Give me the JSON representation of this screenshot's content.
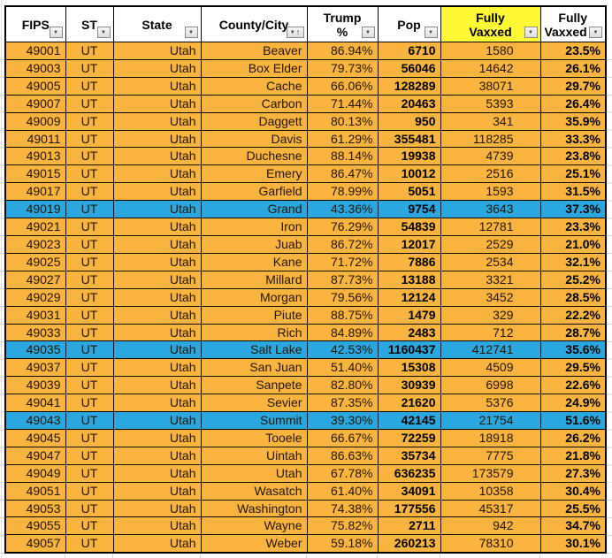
{
  "colors": {
    "row_orange": "#F8B43E",
    "row_highlight_blue": "#2BA7DF",
    "header_highlight_yellow": "#FFF835",
    "cell_border": "#000000"
  },
  "icons": {
    "dropdown": "▼",
    "sort_asc": "↑"
  },
  "table": {
    "columns": [
      {
        "id": "fips",
        "label_lines": [
          "FIPS"
        ],
        "filter": "dropdown"
      },
      {
        "id": "st",
        "label_lines": [
          "ST"
        ],
        "filter": "dropdown"
      },
      {
        "id": "state",
        "label_lines": [
          "State"
        ],
        "filter": "dropdown"
      },
      {
        "id": "county",
        "label_lines": [
          "County/City"
        ],
        "filter": "dropdown-sorted-ascending"
      },
      {
        "id": "trump_pct",
        "label_lines": [
          "Trump",
          "%"
        ],
        "filter": "dropdown"
      },
      {
        "id": "pop",
        "label_lines": [
          "Pop"
        ],
        "filter": "dropdown"
      },
      {
        "id": "fully_vaxxed",
        "label_lines": [
          "Fully",
          "Vaxxed"
        ],
        "filter": "dropdown",
        "highlight": "yellow"
      },
      {
        "id": "fully_vaxxed_pct",
        "label_lines": [
          "Fully",
          "Vaxxed %"
        ],
        "filter": "dropdown"
      }
    ],
    "rows": [
      {
        "fips": "49001",
        "st": "UT",
        "state": "Utah",
        "county": "Beaver",
        "trump_pct": "86.94%",
        "pop": "6710",
        "fully_vaxxed": "1580",
        "fully_vaxxed_pct": "23.5%",
        "highlight": false
      },
      {
        "fips": "49003",
        "st": "UT",
        "state": "Utah",
        "county": "Box Elder",
        "trump_pct": "79.73%",
        "pop": "56046",
        "fully_vaxxed": "14642",
        "fully_vaxxed_pct": "26.1%",
        "highlight": false
      },
      {
        "fips": "49005",
        "st": "UT",
        "state": "Utah",
        "county": "Cache",
        "trump_pct": "66.06%",
        "pop": "128289",
        "fully_vaxxed": "38071",
        "fully_vaxxed_pct": "29.7%",
        "highlight": false
      },
      {
        "fips": "49007",
        "st": "UT",
        "state": "Utah",
        "county": "Carbon",
        "trump_pct": "71.44%",
        "pop": "20463",
        "fully_vaxxed": "5393",
        "fully_vaxxed_pct": "26.4%",
        "highlight": false
      },
      {
        "fips": "49009",
        "st": "UT",
        "state": "Utah",
        "county": "Daggett",
        "trump_pct": "80.13%",
        "pop": "950",
        "fully_vaxxed": "341",
        "fully_vaxxed_pct": "35.9%",
        "highlight": false
      },
      {
        "fips": "49011",
        "st": "UT",
        "state": "Utah",
        "county": "Davis",
        "trump_pct": "61.29%",
        "pop": "355481",
        "fully_vaxxed": "118285",
        "fully_vaxxed_pct": "33.3%",
        "highlight": false
      },
      {
        "fips": "49013",
        "st": "UT",
        "state": "Utah",
        "county": "Duchesne",
        "trump_pct": "88.14%",
        "pop": "19938",
        "fully_vaxxed": "4739",
        "fully_vaxxed_pct": "23.8%",
        "highlight": false
      },
      {
        "fips": "49015",
        "st": "UT",
        "state": "Utah",
        "county": "Emery",
        "trump_pct": "86.47%",
        "pop": "10012",
        "fully_vaxxed": "2516",
        "fully_vaxxed_pct": "25.1%",
        "highlight": false
      },
      {
        "fips": "49017",
        "st": "UT",
        "state": "Utah",
        "county": "Garfield",
        "trump_pct": "78.99%",
        "pop": "5051",
        "fully_vaxxed": "1593",
        "fully_vaxxed_pct": "31.5%",
        "highlight": false
      },
      {
        "fips": "49019",
        "st": "UT",
        "state": "Utah",
        "county": "Grand",
        "trump_pct": "43.36%",
        "pop": "9754",
        "fully_vaxxed": "3643",
        "fully_vaxxed_pct": "37.3%",
        "highlight": true
      },
      {
        "fips": "49021",
        "st": "UT",
        "state": "Utah",
        "county": "Iron",
        "trump_pct": "76.29%",
        "pop": "54839",
        "fully_vaxxed": "12781",
        "fully_vaxxed_pct": "23.3%",
        "highlight": false
      },
      {
        "fips": "49023",
        "st": "UT",
        "state": "Utah",
        "county": "Juab",
        "trump_pct": "86.72%",
        "pop": "12017",
        "fully_vaxxed": "2529",
        "fully_vaxxed_pct": "21.0%",
        "highlight": false
      },
      {
        "fips": "49025",
        "st": "UT",
        "state": "Utah",
        "county": "Kane",
        "trump_pct": "71.72%",
        "pop": "7886",
        "fully_vaxxed": "2534",
        "fully_vaxxed_pct": "32.1%",
        "highlight": false
      },
      {
        "fips": "49027",
        "st": "UT",
        "state": "Utah",
        "county": "Millard",
        "trump_pct": "87.73%",
        "pop": "13188",
        "fully_vaxxed": "3321",
        "fully_vaxxed_pct": "25.2%",
        "highlight": false
      },
      {
        "fips": "49029",
        "st": "UT",
        "state": "Utah",
        "county": "Morgan",
        "trump_pct": "79.56%",
        "pop": "12124",
        "fully_vaxxed": "3452",
        "fully_vaxxed_pct": "28.5%",
        "highlight": false
      },
      {
        "fips": "49031",
        "st": "UT",
        "state": "Utah",
        "county": "Piute",
        "trump_pct": "88.75%",
        "pop": "1479",
        "fully_vaxxed": "329",
        "fully_vaxxed_pct": "22.2%",
        "highlight": false
      },
      {
        "fips": "49033",
        "st": "UT",
        "state": "Utah",
        "county": "Rich",
        "trump_pct": "84.89%",
        "pop": "2483",
        "fully_vaxxed": "712",
        "fully_vaxxed_pct": "28.7%",
        "highlight": false
      },
      {
        "fips": "49035",
        "st": "UT",
        "state": "Utah",
        "county": "Salt Lake",
        "trump_pct": "42.53%",
        "pop": "1160437",
        "fully_vaxxed": "412741",
        "fully_vaxxed_pct": "35.6%",
        "highlight": true
      },
      {
        "fips": "49037",
        "st": "UT",
        "state": "Utah",
        "county": "San Juan",
        "trump_pct": "51.40%",
        "pop": "15308",
        "fully_vaxxed": "4509",
        "fully_vaxxed_pct": "29.5%",
        "highlight": false
      },
      {
        "fips": "49039",
        "st": "UT",
        "state": "Utah",
        "county": "Sanpete",
        "trump_pct": "82.80%",
        "pop": "30939",
        "fully_vaxxed": "6998",
        "fully_vaxxed_pct": "22.6%",
        "highlight": false
      },
      {
        "fips": "49041",
        "st": "UT",
        "state": "Utah",
        "county": "Sevier",
        "trump_pct": "87.35%",
        "pop": "21620",
        "fully_vaxxed": "5376",
        "fully_vaxxed_pct": "24.9%",
        "highlight": false
      },
      {
        "fips": "49043",
        "st": "UT",
        "state": "Utah",
        "county": "Summit",
        "trump_pct": "39.30%",
        "pop": "42145",
        "fully_vaxxed": "21754",
        "fully_vaxxed_pct": "51.6%",
        "highlight": true
      },
      {
        "fips": "49045",
        "st": "UT",
        "state": "Utah",
        "county": "Tooele",
        "trump_pct": "66.67%",
        "pop": "72259",
        "fully_vaxxed": "18918",
        "fully_vaxxed_pct": "26.2%",
        "highlight": false
      },
      {
        "fips": "49047",
        "st": "UT",
        "state": "Utah",
        "county": "Uintah",
        "trump_pct": "86.63%",
        "pop": "35734",
        "fully_vaxxed": "7775",
        "fully_vaxxed_pct": "21.8%",
        "highlight": false
      },
      {
        "fips": "49049",
        "st": "UT",
        "state": "Utah",
        "county": "Utah",
        "trump_pct": "67.78%",
        "pop": "636235",
        "fully_vaxxed": "173579",
        "fully_vaxxed_pct": "27.3%",
        "highlight": false
      },
      {
        "fips": "49051",
        "st": "UT",
        "state": "Utah",
        "county": "Wasatch",
        "trump_pct": "61.40%",
        "pop": "34091",
        "fully_vaxxed": "10358",
        "fully_vaxxed_pct": "30.4%",
        "highlight": false
      },
      {
        "fips": "49053",
        "st": "UT",
        "state": "Utah",
        "county": "Washington",
        "trump_pct": "74.38%",
        "pop": "177556",
        "fully_vaxxed": "45317",
        "fully_vaxxed_pct": "25.5%",
        "highlight": false
      },
      {
        "fips": "49055",
        "st": "UT",
        "state": "Utah",
        "county": "Wayne",
        "trump_pct": "75.82%",
        "pop": "2711",
        "fully_vaxxed": "942",
        "fully_vaxxed_pct": "34.7%",
        "highlight": false
      },
      {
        "fips": "49057",
        "st": "UT",
        "state": "Utah",
        "county": "Weber",
        "trump_pct": "59.18%",
        "pop": "260213",
        "fully_vaxxed": "78310",
        "fully_vaxxed_pct": "30.1%",
        "highlight": false
      }
    ]
  }
}
